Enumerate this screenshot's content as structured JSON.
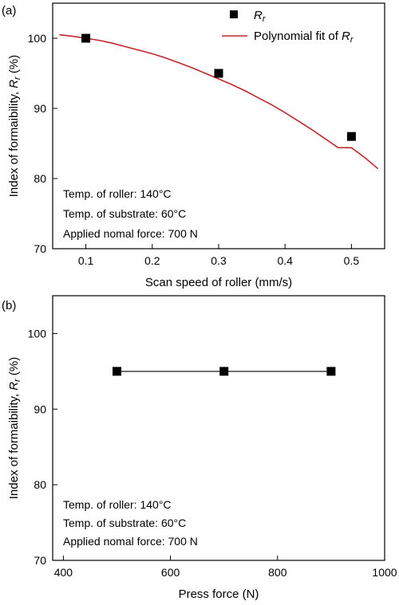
{
  "chart_data": [
    {
      "type": "scatter",
      "panel_label": "(a)",
      "xlabel": "Scan speed of roller (mm/s)",
      "ylabel_main": "Index of formaibility, ",
      "ylabel_symbol": "R",
      "ylabel_sub": "r",
      "ylabel_unit": " (%)",
      "xlim": [
        0.05,
        0.55
      ],
      "ylim": [
        70,
        105
      ],
      "xticks": [
        0.1,
        0.2,
        0.3,
        0.4,
        0.5
      ],
      "xtick_labels": [
        "0.1",
        "0.2",
        "0.3",
        "0.4",
        "0.5"
      ],
      "yticks": [
        70,
        80,
        90,
        100
      ],
      "ytick_labels": [
        "70",
        "80",
        "90",
        "100"
      ],
      "grid": false,
      "series": [
        {
          "name": "Rr",
          "name_symbol": "R",
          "name_sub": "r",
          "style": "square-markers",
          "color": "#000000",
          "x": [
            0.1,
            0.3,
            0.5
          ],
          "y": [
            100.0,
            95.0,
            86.0
          ]
        },
        {
          "name": "Polynomial fit of Rr",
          "name_text": "Polynomial fit of ",
          "name_symbol": "R",
          "name_sub": "r",
          "style": "line",
          "color": "#c0272d",
          "x": [
            0.06,
            0.08,
            0.1,
            0.12,
            0.14,
            0.16,
            0.18,
            0.2,
            0.22,
            0.24,
            0.26,
            0.28,
            0.3,
            0.32,
            0.34,
            0.36,
            0.38,
            0.4,
            0.42,
            0.44,
            0.46,
            0.48,
            0.5,
            0.52,
            0.54
          ],
          "y": [
            100.5,
            100.3,
            100.0,
            99.7,
            99.3,
            98.8,
            98.3,
            97.8,
            97.2,
            96.5,
            95.8,
            95.0,
            94.2,
            93.4,
            92.5,
            91.5,
            90.5,
            89.4,
            88.2,
            87.0,
            85.7,
            84.4,
            84.4,
            83.0,
            81.4
          ]
        }
      ],
      "legend_position": "top-right",
      "annotations": [
        "Temp. of roller: 140°C",
        "Temp. of substrate: 60°C",
        "Applied nomal force: 700 N"
      ]
    },
    {
      "type": "line",
      "panel_label": "(b)",
      "xlabel": "Press force (N)",
      "ylabel_main": "Index of formaibility, ",
      "ylabel_symbol": "R",
      "ylabel_sub": "r",
      "ylabel_unit": "  (%)",
      "xlim": [
        380,
        1000
      ],
      "ylim": [
        70,
        105
      ],
      "xticks": [
        400,
        600,
        800,
        1000
      ],
      "xtick_labels": [
        "400",
        "600",
        "800",
        "1000"
      ],
      "yticks": [
        70,
        80,
        90,
        100
      ],
      "ytick_labels": [
        "70",
        "80",
        "90",
        "100"
      ],
      "grid": false,
      "series": [
        {
          "style": "line-square-markers",
          "color": "#000000",
          "x": [
            500,
            700,
            900
          ],
          "y": [
            95.0,
            95.0,
            95.0
          ]
        }
      ],
      "annotations": [
        "Temp. of roller: 140°C",
        "Temp. of substrate: 60°C",
        "Applied nomal force: 700 N"
      ]
    }
  ]
}
